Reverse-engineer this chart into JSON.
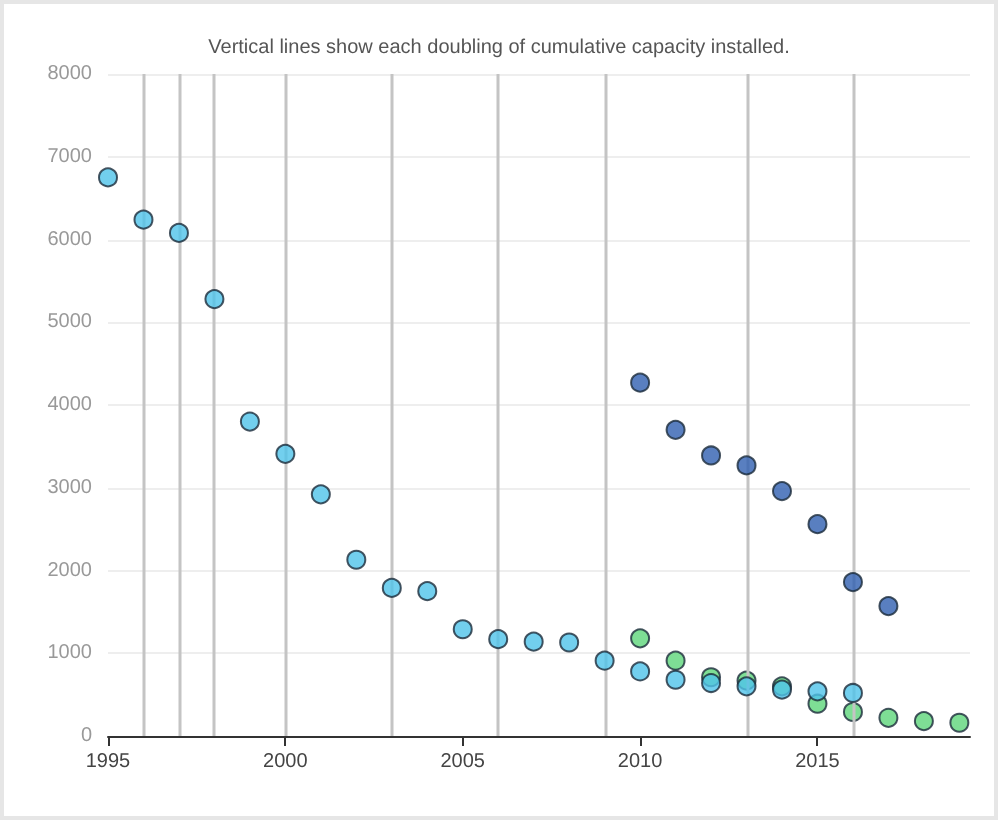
{
  "chart_data": {
    "type": "scatter",
    "title": "Vertical lines show each doubling of cumulative capacity installed.",
    "xlim": [
      1995,
      2019.3
    ],
    "xticks": [
      1995,
      2000,
      2005,
      2010,
      2015
    ],
    "ylim": [
      0,
      8000
    ],
    "yticks": [
      0,
      1000,
      2000,
      3000,
      4000,
      5000,
      6000,
      7000,
      8000
    ],
    "grid": "y",
    "marker": "circle",
    "series": [
      {
        "color": "#4fc3ea",
        "x": [
          1995,
          1996,
          1997,
          1998,
          1999,
          2000,
          2001,
          2002,
          2003,
          2004,
          2005,
          2006,
          2007,
          2008,
          2009,
          2010,
          2011,
          2012,
          2013,
          2014,
          2015,
          2016
        ],
        "values": [
          6750,
          6240,
          6080,
          5280,
          3800,
          3410,
          2920,
          2130,
          1790,
          1750,
          1290,
          1170,
          1140,
          1130,
          910,
          780,
          680,
          640,
          600,
          560,
          540,
          520
        ]
      },
      {
        "color": "#2f5fb0",
        "x": [
          2010,
          2011,
          2012,
          2013,
          2014,
          2015,
          2016,
          2017
        ],
        "values": [
          4270,
          3700,
          3390,
          3270,
          2960,
          2560,
          1860,
          1570
        ]
      },
      {
        "color": "#5ed67a",
        "x": [
          2010,
          2011,
          2012,
          2013,
          2014,
          2015,
          2016,
          2017,
          2018,
          2019
        ],
        "values": [
          1180,
          910,
          710,
          670,
          600,
          390,
          290,
          220,
          180,
          160
        ]
      }
    ],
    "ref_lines": [
      {
        "axis": "x",
        "value": 1996,
        "color": "#c4c4c4"
      },
      {
        "axis": "x",
        "value": 1997,
        "color": "#c4c4c4"
      },
      {
        "axis": "x",
        "value": 1998,
        "color": "#c4c4c4"
      },
      {
        "axis": "x",
        "value": 2000,
        "color": "#c4c4c4"
      },
      {
        "axis": "x",
        "value": 2003,
        "color": "#c4c4c4"
      },
      {
        "axis": "x",
        "value": 2006,
        "color": "#c4c4c4"
      },
      {
        "axis": "x",
        "value": 2009,
        "color": "#c4c4c4"
      },
      {
        "axis": "x",
        "value": 2013,
        "color": "#c4c4c4"
      },
      {
        "axis": "x",
        "value": 2016,
        "color": "#c4c4c4"
      }
    ]
  }
}
